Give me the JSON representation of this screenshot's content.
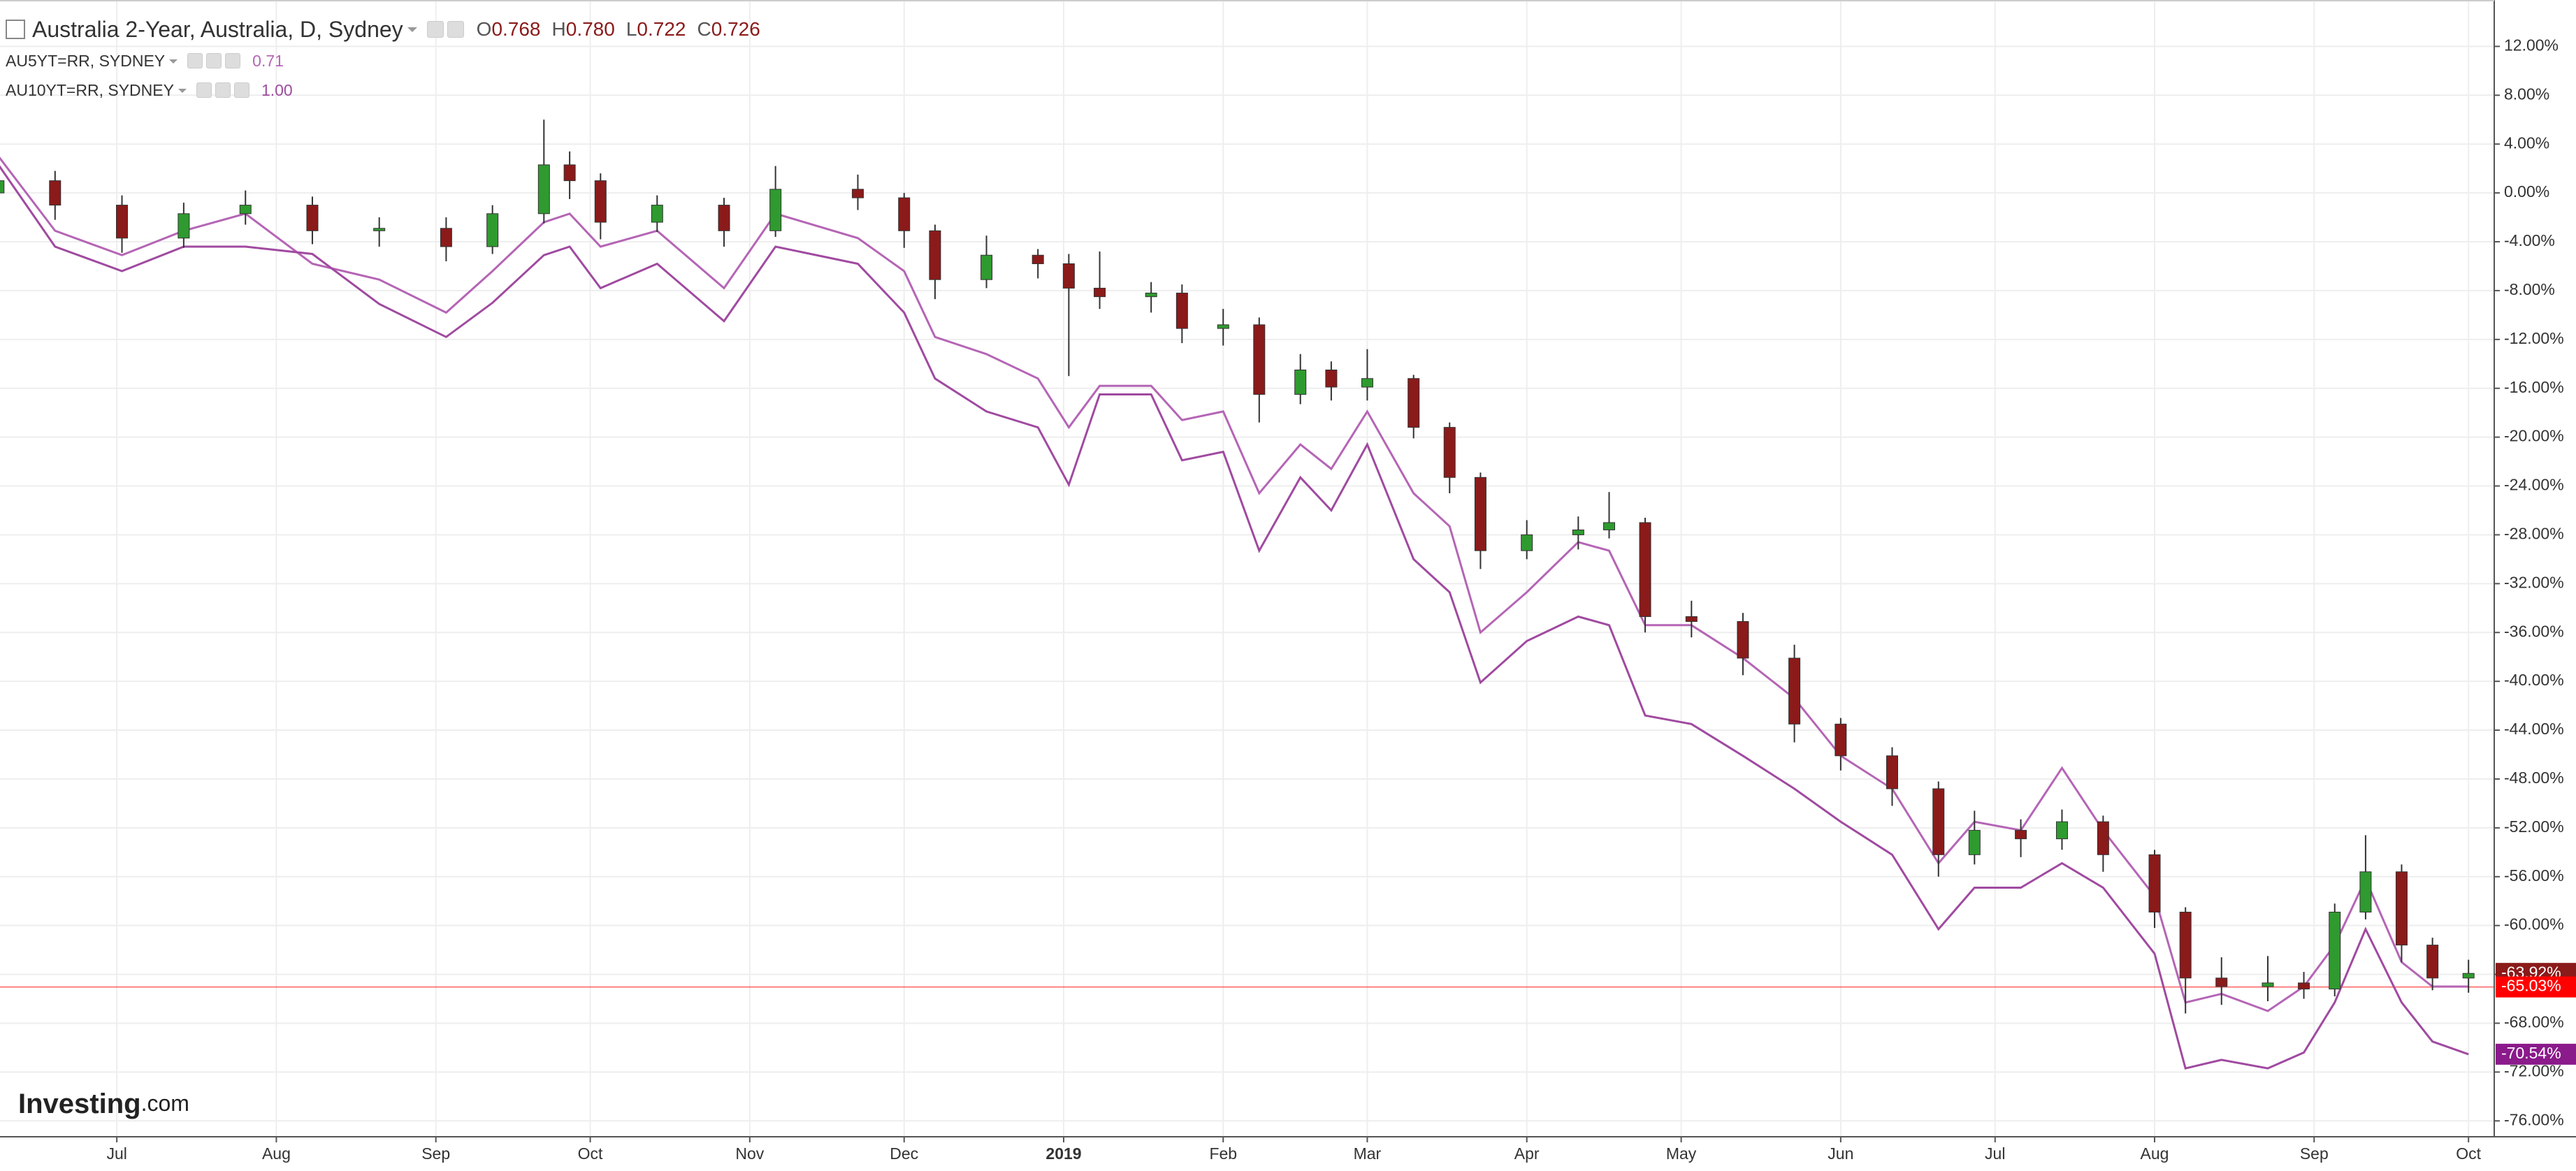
{
  "chart_data": {
    "type": "candlestick",
    "title": "Australia 2-Year, Australia, D, Sydney",
    "header_labels": [
      "O",
      "H",
      "L",
      "C"
    ],
    "header_values": [
      "0.768",
      "0.780",
      "0.722",
      "0.726"
    ],
    "up_color": "#2f9a2f",
    "down_color": "#8b1a1a",
    "x": [
      -23,
      -12,
      1,
      13,
      25,
      38,
      51,
      64,
      73,
      83,
      88,
      94,
      105,
      118,
      128,
      144,
      153,
      159,
      169,
      179,
      185,
      191,
      201,
      207,
      215,
      222,
      230,
      236,
      243,
      252,
      259,
      265,
      274,
      284,
      290,
      297,
      306,
      316,
      326,
      335,
      345,
      354,
      361,
      370,
      378,
      386,
      396,
      402,
      409,
      418,
      425,
      431,
      437,
      444,
      450,
      457
    ],
    "open": [
      0,
      1.0,
      -1.0,
      -3.7,
      -1.7,
      -1.0,
      -3.1,
      -2.9,
      -4.4,
      -1.7,
      2.3,
      1.0,
      -2.4,
      -1.0,
      -3.1,
      0.3,
      -0.4,
      -3.1,
      -7.1,
      -5.1,
      -5.8,
      -7.8,
      -8.5,
      -8.2,
      -11.1,
      -10.8,
      -16.5,
      -14.5,
      -15.9,
      -15.2,
      -19.2,
      -23.3,
      -29.3,
      -28,
      -27.6,
      -27,
      -34.7,
      -35.1,
      -38.1,
      -43.5,
      -46.1,
      -48.8,
      -54.2,
      -52.2,
      -52.9,
      -51.5,
      -54.2,
      -58.9,
      -64.3,
      -65,
      -64.7,
      -65.2,
      -58.9,
      -55.6,
      -61.6,
      -64.3
    ],
    "high": [
      2.5,
      1.8,
      -0.2,
      -0.8,
      0.2,
      -0.3,
      -2.0,
      -2.0,
      -1.0,
      6.0,
      3.4,
      1.6,
      -0.2,
      -0.4,
      2.2,
      1.5,
      0.0,
      -2.6,
      -3.5,
      -4.6,
      -5.0,
      -4.8,
      -7.3,
      -7.5,
      -9.5,
      -10.2,
      -13.2,
      -13.8,
      -12.8,
      -14.9,
      -18.8,
      -22.9,
      -26.8,
      -26.5,
      -24.5,
      -26.6,
      -33.4,
      -34.4,
      -37.0,
      -43.0,
      -45.4,
      -48.2,
      -50.6,
      -51.3,
      -50.5,
      -51.0,
      -53.8,
      -58.5,
      -62.6,
      -62.5,
      -63.8,
      -58.2,
      -52.6,
      -55.0,
      -61.0,
      -62.8
    ],
    "low": [
      -0.8,
      -2.2,
      -4.9,
      -4.5,
      -2.6,
      -4.2,
      -4.4,
      -5.6,
      -5.0,
      -2.5,
      -0.5,
      -3.8,
      -3.2,
      -4.4,
      -3.6,
      -1.4,
      -4.5,
      -8.7,
      -7.8,
      -7.0,
      -15.0,
      -9.5,
      -9.8,
      -12.3,
      -12.5,
      -18.8,
      -17.3,
      -17.0,
      -17.0,
      -20.1,
      -24.6,
      -30.8,
      -30.0,
      -29.2,
      -28.3,
      -36.0,
      -36.4,
      -39.5,
      -45.0,
      -47.3,
      -50.2,
      -56.0,
      -55.0,
      -54.4,
      -53.8,
      -55.6,
      -60.2,
      -67.2,
      -66.5,
      -66.2,
      -66.0,
      -65.8,
      -59.5,
      -63.0,
      -65.3,
      -65.5
    ],
    "close": [
      1.0,
      -1.0,
      -3.7,
      -1.7,
      -1.0,
      -3.1,
      -2.9,
      -4.4,
      -1.7,
      2.3,
      1.0,
      -2.4,
      -1.0,
      -3.1,
      0.3,
      -0.4,
      -3.1,
      -7.1,
      -5.1,
      -5.8,
      -7.8,
      -8.5,
      -8.2,
      -11.1,
      -10.8,
      -16.5,
      -14.5,
      -15.9,
      -15.2,
      -19.2,
      -23.3,
      -29.3,
      -28,
      -27.6,
      -27,
      -34.7,
      -35.1,
      -38.1,
      -43.5,
      -46.1,
      -48.8,
      -54.2,
      -52.2,
      -52.9,
      -51.5,
      -54.2,
      -58.9,
      -64.3,
      -65,
      -64.7,
      -65.2,
      -58.9,
      -55.6,
      -61.6,
      -64.3,
      -63.92
    ],
    "last_label": {
      "value": -63.92,
      "label": "-63.92%",
      "color": "#8b1a1a"
    },
    "price_line": {
      "value": -65.03,
      "label": "-65.03%",
      "color": "#ff0000"
    },
    "series": [
      {
        "name": "AU5YT=RR, SYDNEY",
        "legend_value": "0.71",
        "color": "#b565b5",
        "values": [
          3,
          -3.1,
          -5.1,
          -3.1,
          -1.7,
          -5.8,
          -7.1,
          -9.8,
          -6.4,
          -2.4,
          -1.7,
          -4.4,
          -3.1,
          -7.8,
          -1.7,
          -3.7,
          -6.4,
          -11.8,
          -13.2,
          -15.2,
          -19.2,
          -15.8,
          -15.8,
          -18.6,
          -17.9,
          -24.6,
          -20.6,
          -22.6,
          -17.9,
          -24.6,
          -27.3,
          -36,
          -32.7,
          -28.6,
          -29.3,
          -35.4,
          -35.4,
          -38.1,
          -41.4,
          -46.1,
          -48.8,
          -54.9,
          -51.5,
          -52.2,
          -47.1,
          -52.2,
          -57.6,
          -66.3,
          -65.6,
          -67,
          -65,
          -61.6,
          -56.2,
          -63,
          -65,
          -65
        ]
      },
      {
        "name": "AU10YT=RR, SYDNEY",
        "legend_value": "1.00",
        "color": "#a04aa0",
        "values": [
          2.3,
          -4.4,
          -6.4,
          -4.4,
          -4.4,
          -5,
          -9.1,
          -11.8,
          -9,
          -5.1,
          -4.4,
          -7.8,
          -5.8,
          -10.5,
          -4.4,
          -5.8,
          -9.8,
          -15.2,
          -17.9,
          -19.2,
          -23.9,
          -16.5,
          -16.5,
          -21.9,
          -21.2,
          -29.3,
          -23.3,
          -26,
          -20.6,
          -30,
          -32.7,
          -40.1,
          -36.7,
          -34.7,
          -35.4,
          -42.8,
          -43.5,
          -46.1,
          -48.8,
          -51.5,
          -54.2,
          -60.3,
          -56.9,
          -56.9,
          -54.9,
          -56.9,
          -62.3,
          -71.7,
          -71,
          -71.7,
          -70.4,
          -66.3,
          -60.3,
          -66.3,
          -69.5,
          -70.54
        ],
        "last_label": {
          "value": -70.54,
          "label": "-70.54%",
          "color": "#8b1a8b"
        }
      }
    ],
    "xlim": [
      -22.7,
      462
    ],
    "xticks": [
      {
        "value": 0,
        "label": "Jul"
      },
      {
        "value": 31,
        "label": "Aug"
      },
      {
        "value": 62,
        "label": "Sep"
      },
      {
        "value": 92,
        "label": "Oct"
      },
      {
        "value": 123,
        "label": "Nov"
      },
      {
        "value": 153,
        "label": "Dec"
      },
      {
        "value": 184,
        "label": "2019"
      },
      {
        "value": 215,
        "label": "Feb"
      },
      {
        "value": 243,
        "label": "Mar"
      },
      {
        "value": 274,
        "label": "Apr"
      },
      {
        "value": 304,
        "label": "May"
      },
      {
        "value": 335,
        "label": "Jun"
      },
      {
        "value": 365,
        "label": "Jul"
      },
      {
        "value": 396,
        "label": "Aug"
      },
      {
        "value": 427,
        "label": "Sep"
      },
      {
        "value": 457,
        "label": "Oct"
      }
    ],
    "ylim": [
      -77.3,
      15.8
    ],
    "yticks": [
      {
        "value": 12,
        "label": "12.00%"
      },
      {
        "value": 8,
        "label": "8.00%"
      },
      {
        "value": 4,
        "label": "4.00%"
      },
      {
        "value": 0,
        "label": "0.00%"
      },
      {
        "value": -4,
        "label": "-4.00%"
      },
      {
        "value": -8,
        "label": "-8.00%"
      },
      {
        "value": -12,
        "label": "-12.00%"
      },
      {
        "value": -16,
        "label": "-16.00%"
      },
      {
        "value": -20,
        "label": "-20.00%"
      },
      {
        "value": -24,
        "label": "-24.00%"
      },
      {
        "value": -28,
        "label": "-28.00%"
      },
      {
        "value": -32,
        "label": "-32.00%"
      },
      {
        "value": -36,
        "label": "-36.00%"
      },
      {
        "value": -40,
        "label": "-40.00%"
      },
      {
        "value": -44,
        "label": "-44.00%"
      },
      {
        "value": -48,
        "label": "-48.00%"
      },
      {
        "value": -52,
        "label": "-52.00%"
      },
      {
        "value": -56,
        "label": "-56.00%"
      },
      {
        "value": -60,
        "label": "-60.00%"
      },
      {
        "value": -64,
        "label": "-64.00%"
      },
      {
        "value": -68,
        "label": "-68.00%"
      },
      {
        "value": -72,
        "label": "-72.00%"
      },
      {
        "value": -76,
        "label": "-76.00%"
      }
    ],
    "grid": true,
    "watermark": [
      "Investing",
      ".com"
    ]
  }
}
